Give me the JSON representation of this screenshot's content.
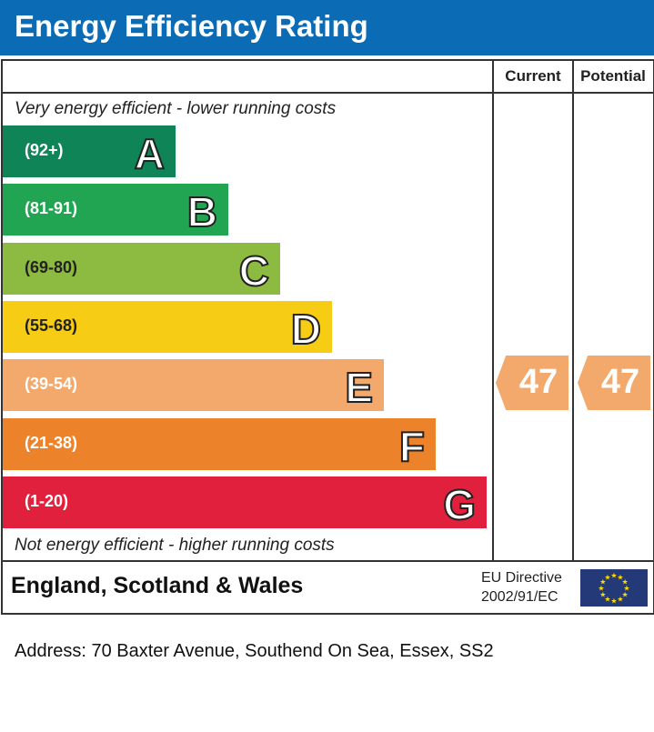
{
  "title": "Energy Efficiency Rating",
  "columns": {
    "current": "Current",
    "potential": "Potential"
  },
  "notes": {
    "top": "Very energy efficient - lower running costs",
    "bottom": "Not energy efficient - higher running costs"
  },
  "chart_data": {
    "type": "bar",
    "categories": [
      "A",
      "B",
      "C",
      "D",
      "E",
      "F",
      "G"
    ],
    "ranges": [
      "(92+)",
      "(81-91)",
      "(69-80)",
      "(55-68)",
      "(39-54)",
      "(21-38)",
      "(1-20)"
    ],
    "colors": [
      "#0f8457",
      "#22a553",
      "#8dbb41",
      "#f6cc14",
      "#f2a96b",
      "#ec8229",
      "#e0203c"
    ],
    "current": {
      "label": "Current",
      "value": "47",
      "band": "E"
    },
    "potential": {
      "label": "Potential",
      "value": "47",
      "band": "E"
    }
  },
  "footer": {
    "region": "England, Scotland & Wales",
    "directive_line1": "EU Directive",
    "directive_line2": "2002/91/EC"
  },
  "address": "Address: 70 Baxter Avenue, Southend On Sea, Essex, SS2"
}
